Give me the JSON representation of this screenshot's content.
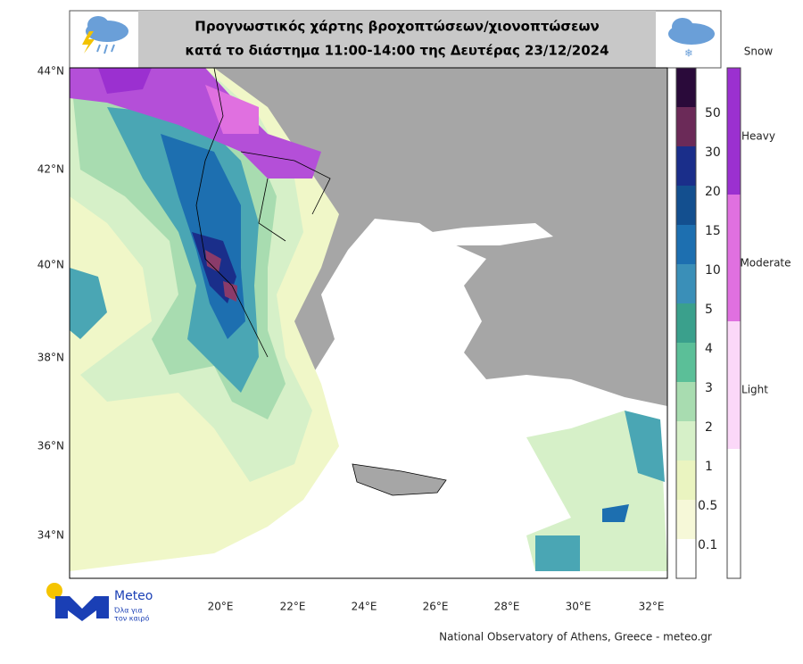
{
  "header": {
    "title_lines": [
      "Προγνωστικός χάρτης βροχοπτώσεων/χιονοπτώσεων",
      "κατά το διάστημα 11:00-14:00 της Δευτέρας 23/12/2024"
    ]
  },
  "axes": {
    "lat_labels": [
      "44°N",
      "42°N",
      "40°N",
      "38°N",
      "36°N",
      "34°N"
    ],
    "lon_labels": [
      "20°E",
      "22°E",
      "24°E",
      "26°E",
      "28°E",
      "30°E",
      "32°E"
    ]
  },
  "rain_legend": {
    "labels": [
      "50",
      "30",
      "20",
      "15",
      "10",
      "5",
      "4",
      "3",
      "2",
      "1",
      "0.5",
      "0.1"
    ]
  },
  "snow_legend": {
    "title": "Snow",
    "levels": [
      "Heavy",
      "Moderate",
      "Light"
    ]
  },
  "logo": {
    "name": "Meteo",
    "tagline": [
      "Όλα για",
      "τον καιρό"
    ]
  },
  "footer": {
    "credit": "National Observatory of Athens, Greece - meteo.gr"
  }
}
